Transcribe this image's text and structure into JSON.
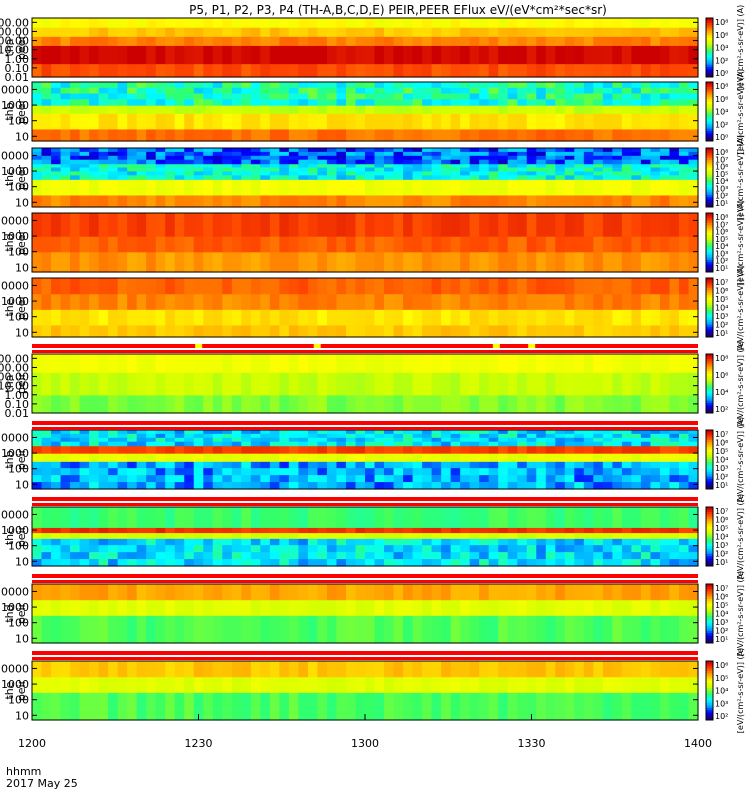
{
  "title": "P5, P1, P2, P3, P4 (TH-A,B,C,D,E) PEIR,PEER EFlux eV/(eV*cm²*sec*sr)",
  "time_axis": {
    "label_line1": "hhmm",
    "label_line2": "2017 May 25",
    "tick_labels": [
      "1200",
      "1230",
      "1300",
      "1330",
      "1400"
    ]
  },
  "colors": {
    "colormap": [
      "#1a0066",
      "#0000ff",
      "#00aaff",
      "#00ffff",
      "#33ff66",
      "#ccff00",
      "#ffff00",
      "#ffaa00",
      "#ff4400",
      "#cc0000"
    ],
    "flag_red": "#ff0000",
    "flag_yellow": "#ffff00"
  },
  "chart_data": [
    {
      "type": "heatmap",
      "probe": "tha",
      "species": "peer",
      "x_range": [
        "12:00",
        "14:00"
      ],
      "y_scale": "log",
      "y_ticks": [
        "10000.00",
        "1000.00",
        "100.00",
        "10.00",
        "1.00",
        "0.10",
        "0.01"
      ],
      "colorbar_ticks": [
        "10⁸",
        "10⁶",
        "10⁴",
        "10²",
        "10⁰"
      ],
      "colorbar_label": "[eV/(cm²-s-sr-eV)] (A)",
      "bands": [
        {
          "y": "0.01-0.3",
          "level": 0.88
        },
        {
          "y": "0.3-30",
          "level": 0.99
        },
        {
          "y": "30-300",
          "level": 0.82
        },
        {
          "y": "300-3000",
          "level": 0.74
        },
        {
          "y": "3000-30000",
          "level": 0.66
        }
      ]
    },
    {
      "type": "heatmap",
      "probe": "thb",
      "species": "peer",
      "x_range": [
        "12:00",
        "14:00"
      ],
      "y_scale": "log",
      "y_ticks": [
        "10000",
        "1000",
        "100",
        "10"
      ],
      "colorbar_ticks": [
        "10⁸",
        "10⁶",
        "10⁴",
        "10²",
        "10⁰"
      ],
      "colorbar_label": "[eV/(cm²-s-sr-eV)] (A)",
      "bands": [
        {
          "y": "5-30",
          "level": 0.84
        },
        {
          "y": "30-300",
          "level": 0.7
        },
        {
          "y": "300-1000",
          "level": 0.56
        },
        {
          "y": "1000-30000",
          "level": 0.38
        }
      ]
    },
    {
      "type": "heatmap",
      "probe": "thc",
      "species": "peer",
      "x_range": [
        "12:00",
        "14:00"
      ],
      "y_scale": "log",
      "y_ticks": [
        "10000",
        "1000",
        "100",
        "10"
      ],
      "colorbar_ticks": [
        "10⁸",
        "10⁷",
        "10⁶",
        "10⁵",
        "10⁴",
        "10³",
        "10²",
        "10¹"
      ],
      "colorbar_label": "[eV/(cm²-s-sr-eV)] (A)",
      "bands": [
        {
          "y": "5-30",
          "level": 0.82
        },
        {
          "y": "30-300",
          "level": 0.64
        },
        {
          "y": "300-3000",
          "level": 0.34
        },
        {
          "y": "3000-30000",
          "level": 0.18
        }
      ]
    },
    {
      "type": "heatmap",
      "probe": "thd",
      "species": "peer",
      "x_range": [
        "12:00",
        "14:00"
      ],
      "y_scale": "log",
      "y_ticks": [
        "10000",
        "1000",
        "100",
        "10"
      ],
      "colorbar_ticks": [
        "10⁸",
        "10⁷",
        "10⁶",
        "10⁵",
        "10⁴",
        "10³",
        "10²",
        "10¹"
      ],
      "colorbar_label": "[eV/(cm²-s-sr-eV)] (A)",
      "bands": [
        {
          "y": "5-100",
          "level": 0.8
        },
        {
          "y": "100-1000",
          "level": 0.86
        },
        {
          "y": "1000-30000",
          "level": 0.9
        }
      ]
    },
    {
      "type": "heatmap",
      "probe": "the",
      "species": "peer",
      "x_range": [
        "12:00",
        "14:00"
      ],
      "y_scale": "log",
      "y_ticks": [
        "10000",
        "1000",
        "100",
        "10"
      ],
      "colorbar_ticks": [
        "10⁷",
        "10⁶",
        "10⁵",
        "10⁴",
        "10³",
        "10²",
        "10¹"
      ],
      "colorbar_label": "[eV/(cm²-s-sr-eV)] (A)",
      "bands": [
        {
          "y": "5-30",
          "level": 0.74
        },
        {
          "y": "30-300",
          "level": 0.7
        },
        {
          "y": "300-3000",
          "level": 0.82
        },
        {
          "y": "3000-30000",
          "level": 0.86
        }
      ]
    },
    {
      "type": "heatmap",
      "probe": "tha",
      "species": "peir",
      "x_range": [
        "12:00",
        "14:00"
      ],
      "y_scale": "log",
      "y_ticks": [
        "10000.00",
        "1000.00",
        "100.00",
        "10.00",
        "1.00",
        "0.10",
        "0.01"
      ],
      "colorbar_ticks": [
        "10⁸",
        "10⁶",
        "10⁴",
        "10²"
      ],
      "colorbar_label": "[eV/(cm²-s-sr-eV)] (A)",
      "bands": [
        {
          "y": "0.01-1",
          "level": 0.5
        },
        {
          "y": "1-300",
          "level": 0.56
        },
        {
          "y": "300-30000",
          "level": 0.64
        }
      ]
    },
    {
      "type": "heatmap",
      "probe": "thb",
      "species": "peir",
      "x_range": [
        "12:00",
        "14:00"
      ],
      "y_scale": "log",
      "y_ticks": [
        "10000",
        "1000",
        "100",
        "10"
      ],
      "colorbar_ticks": [
        "10⁷",
        "10⁶",
        "10⁵",
        "10⁴",
        "10³",
        "10²",
        "10¹"
      ],
      "colorbar_label": "[eV/(cm²-s-sr-eV)] (A)",
      "bands": [
        {
          "y": "5-300",
          "level": 0.24
        },
        {
          "y": "300-1000",
          "level": 0.62
        },
        {
          "y": "1000-3000",
          "level": 0.9
        },
        {
          "y": "3000-30000",
          "level": 0.3
        }
      ]
    },
    {
      "type": "heatmap",
      "probe": "thc",
      "species": "peir",
      "x_range": [
        "12:00",
        "14:00"
      ],
      "y_scale": "log",
      "y_ticks": [
        "10000",
        "1000",
        "100",
        "10"
      ],
      "colorbar_ticks": [
        "10⁷",
        "10⁶",
        "10⁵",
        "10⁴",
        "10³",
        "10²",
        "10¹"
      ],
      "colorbar_label": "[eV/(cm²-s-sr-eV)] (A)",
      "bands": [
        {
          "y": "5-300",
          "level": 0.3
        },
        {
          "y": "300-700",
          "level": 0.58
        },
        {
          "y": "700-1500",
          "level": 0.92
        },
        {
          "y": "1500-30000",
          "level": 0.44
        }
      ]
    },
    {
      "type": "heatmap",
      "probe": "thd",
      "species": "peir",
      "x_range": [
        "12:00",
        "14:00"
      ],
      "y_scale": "log",
      "y_ticks": [
        "10000",
        "1000",
        "100",
        "10"
      ],
      "colorbar_ticks": [
        "10⁷",
        "10⁶",
        "10⁵",
        "10⁴",
        "10³",
        "10²",
        "10¹"
      ],
      "colorbar_label": "[eV/(cm²-s-sr-eV)] (A)",
      "bands": [
        {
          "y": "5-300",
          "level": 0.46
        },
        {
          "y": "300-3000",
          "level": 0.6
        },
        {
          "y": "3000-30000",
          "level": 0.78
        }
      ]
    },
    {
      "type": "heatmap",
      "probe": "the",
      "species": "peir",
      "x_range": [
        "12:00",
        "14:00"
      ],
      "y_scale": "log",
      "y_ticks": [
        "10000",
        "1000",
        "100",
        "10"
      ],
      "colorbar_ticks": [
        "10⁶",
        "10⁵",
        "10⁴",
        "10³",
        "10²"
      ],
      "colorbar_label": "[eV/(cm²-s-sr-eV)] (A)",
      "bands": [
        {
          "y": "5-300",
          "level": 0.46
        },
        {
          "y": "300-3000",
          "level": 0.6
        },
        {
          "y": "3000-30000",
          "level": 0.74
        }
      ]
    }
  ]
}
